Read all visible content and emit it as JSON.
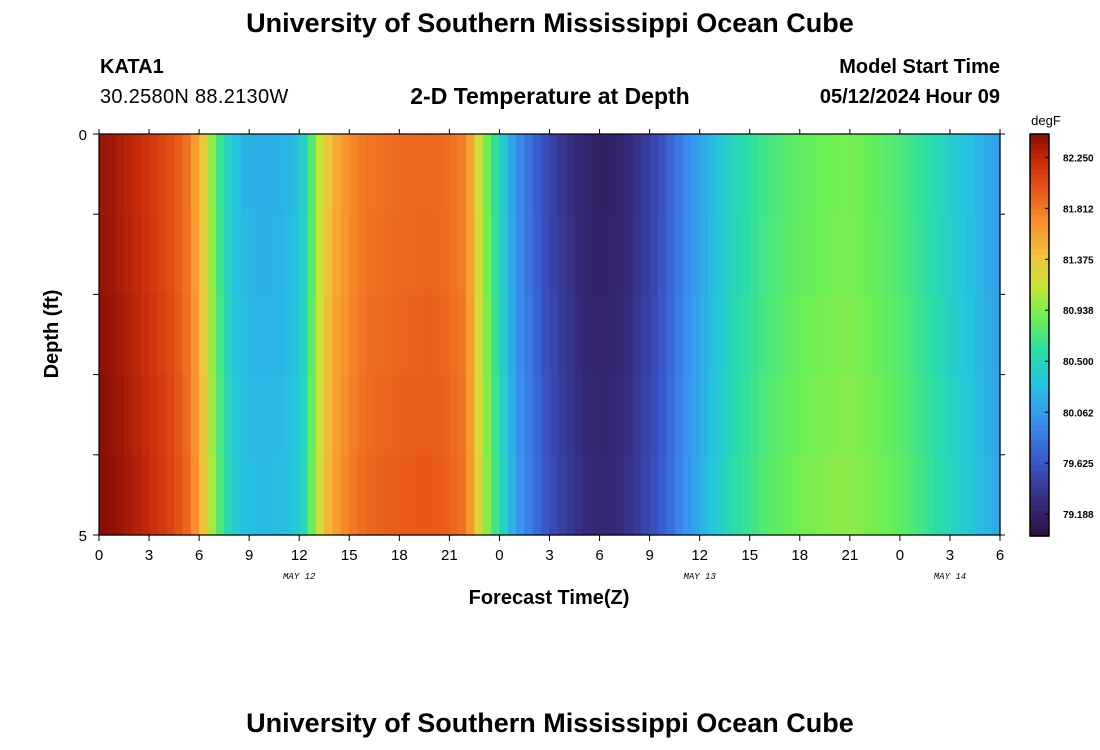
{
  "header": {
    "title": "University of Southern Mississippi Ocean Cube",
    "station_id": "KATA1",
    "coordinates": "30.2580N  88.2130W",
    "subtitle": "2-D Temperature at Depth",
    "model_start_label": "Model Start Time",
    "model_start_value": "05/12/2024 Hour 09"
  },
  "footer": {
    "title": "University of Southern Mississippi Ocean Cube"
  },
  "chart_data": {
    "type": "heatmap",
    "title": "2-D Temperature at Depth",
    "xlabel": "Forecast Time(Z)",
    "ylabel": "Depth (ft)",
    "x_tick_labels": [
      "0",
      "3",
      "6",
      "9",
      "12",
      "15",
      "18",
      "21",
      "0",
      "3",
      "6",
      "9",
      "12",
      "15",
      "18",
      "21",
      "0",
      "3",
      "6"
    ],
    "x_date_labels": [
      {
        "label": "MAY 12",
        "tick_index": 4
      },
      {
        "label": "MAY 13",
        "tick_index": 12
      },
      {
        "label": "MAY 14",
        "tick_index": 17
      }
    ],
    "y_tick_labels": [
      "0",
      "5"
    ],
    "ylim": [
      0,
      5
    ],
    "y_inverted": true,
    "x_range_hours": [
      0,
      54
    ],
    "depth_levels_ft": [
      0,
      1,
      2,
      3,
      4,
      5
    ],
    "colorbar": {
      "units": "degF",
      "tick_labels": [
        "82.250",
        "81.812",
        "81.375",
        "80.938",
        "80.500",
        "80.062",
        "79.625",
        "79.188"
      ],
      "range": [
        79.0,
        82.45
      ]
    },
    "temperature_profile_by_hour": {
      "hours": [
        0,
        1,
        2,
        3,
        4,
        5,
        5.5,
        6,
        6.5,
        7,
        7.5,
        8,
        8.5,
        9,
        10,
        11,
        12,
        12.5,
        13,
        13.5,
        14,
        15,
        16,
        18,
        20,
        21,
        22,
        22.5,
        23,
        24,
        25,
        26,
        27,
        28,
        29,
        30,
        31,
        32,
        33,
        34,
        35,
        36,
        37,
        38,
        40,
        42,
        44,
        45,
        46,
        48,
        50,
        52,
        54
      ],
      "degF": [
        82.4,
        82.35,
        82.25,
        82.15,
        82.05,
        81.9,
        81.75,
        81.5,
        81.15,
        80.8,
        80.55,
        80.35,
        80.25,
        80.2,
        80.18,
        80.2,
        80.3,
        80.6,
        80.95,
        81.3,
        81.5,
        81.7,
        81.82,
        81.88,
        81.9,
        81.85,
        81.75,
        81.4,
        81.0,
        80.5,
        80.0,
        79.75,
        79.5,
        79.35,
        79.22,
        79.17,
        79.2,
        79.3,
        79.45,
        79.65,
        79.9,
        80.1,
        80.3,
        80.5,
        80.7,
        80.82,
        80.88,
        80.9,
        80.85,
        80.75,
        80.55,
        80.3,
        80.05
      ]
    },
    "depth_offsets_degF": [
      0,
      0.01,
      0.03,
      0.05,
      0.07
    ]
  }
}
